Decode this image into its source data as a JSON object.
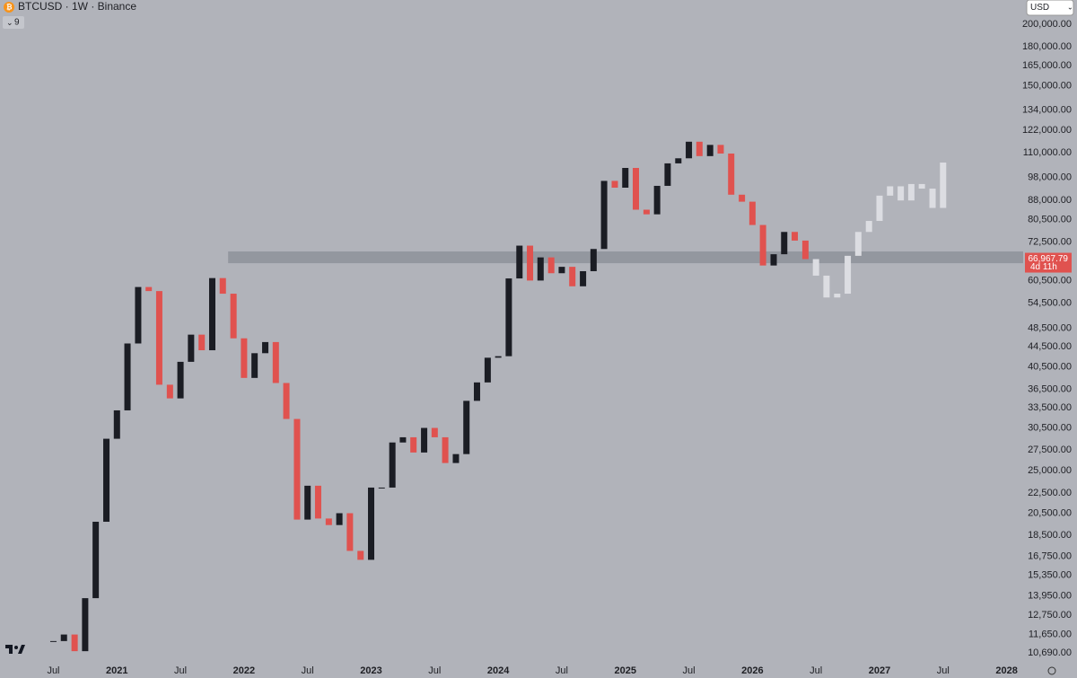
{
  "chart_data": {
    "type": "candlestick",
    "title": "BTCUSD · 1W · Binance",
    "indicator_count": "9",
    "currency": "USD",
    "log_scale": true,
    "xlim": [
      2020.08,
      2028.13
    ],
    "ylim": [
      10130,
      223900
    ],
    "xticks": [
      {
        "value": 2020.5,
        "label": "Jul"
      },
      2021,
      {
        "value": 2021.5,
        "label": "Jul"
      },
      2022,
      {
        "value": 2022.5,
        "label": "Jul"
      },
      2023,
      {
        "value": 2023.5,
        "label": "Jul"
      },
      2024,
      {
        "value": 2024.5,
        "label": "Jul"
      },
      2025,
      {
        "value": 2025.5,
        "label": "Jul"
      },
      2026,
      {
        "value": 2026.5,
        "label": "Jul"
      },
      2027,
      {
        "value": 2027.5,
        "label": "Jul"
      },
      2028
    ],
    "yticks": [
      {
        "value": 200000,
        "label": "200,000.00"
      },
      {
        "value": 180000,
        "label": "180,000.00"
      },
      {
        "value": 165000,
        "label": "165,000.00"
      },
      {
        "value": 150000,
        "label": "150,000.00"
      },
      {
        "value": 134000,
        "label": "134,000.00"
      },
      {
        "value": 122000,
        "label": "122,000.00"
      },
      {
        "value": 110000,
        "label": "110,000.00"
      },
      {
        "value": 98000,
        "label": "98,000.00"
      },
      {
        "value": 88000,
        "label": "88,000.00"
      },
      {
        "value": 80500,
        "label": "80,500.00"
      },
      {
        "value": 72500,
        "label": "72,500.00"
      },
      {
        "value": 60500,
        "label": "60,500.00"
      },
      {
        "value": 54500,
        "label": "54,500.00"
      },
      {
        "value": 48500,
        "label": "48,500.00"
      },
      {
        "value": 44500,
        "label": "44,500.00"
      },
      {
        "value": 40500,
        "label": "40,500.00"
      },
      {
        "value": 36500,
        "label": "36,500.00"
      },
      {
        "value": 33500,
        "label": "33,500.00"
      },
      {
        "value": 30500,
        "label": "30,500.00"
      },
      {
        "value": 27500,
        "label": "27,500.00"
      },
      {
        "value": 25000,
        "label": "25,000.00"
      },
      {
        "value": 22500,
        "label": "22,500.00"
      },
      {
        "value": 20500,
        "label": "20,500.00"
      },
      {
        "value": 18500,
        "label": "18,500.00"
      },
      {
        "value": 16750,
        "label": "16,750.00"
      },
      {
        "value": 15350,
        "label": "15,350.00"
      },
      {
        "value": 13950,
        "label": "13,950.00"
      },
      {
        "value": 12750,
        "label": "12,750.00"
      },
      {
        "value": 11650,
        "label": "11,650.00"
      },
      {
        "value": 10690,
        "label": "10,690.00"
      }
    ],
    "zone": {
      "start": 2021.875,
      "low": 65700,
      "high": 69400,
      "color": "#8a8d95"
    },
    "up_color": "#1b1d24",
    "down_color": "#e0524f",
    "series": [
      {
        "color": "#1b1d24",
        "x": [
          2020.5,
          2020.583,
          2020.667,
          2020.75,
          2020.833,
          2020.917,
          2021,
          2021.083,
          2021.167,
          2021.25,
          2021.333,
          2021.417,
          2021.5,
          2021.583,
          2021.667,
          2021.75,
          2021.833,
          2021.917,
          2022,
          2022.083,
          2022.167,
          2022.25,
          2022.333,
          2022.417,
          2022.5,
          2022.583,
          2022.667,
          2022.75,
          2022.833,
          2022.917,
          2023,
          2023.083,
          2023.167,
          2023.25,
          2023.333,
          2023.417,
          2023.5,
          2023.583,
          2023.667,
          2023.75,
          2023.833,
          2023.917,
          2024,
          2024.083,
          2024.167,
          2024.25,
          2024.333,
          2024.417,
          2024.5,
          2024.583,
          2024.667,
          2024.75,
          2024.833,
          2024.917,
          2025,
          2025.083,
          2025.167,
          2025.25,
          2025.333,
          2025.417,
          2025.5,
          2025.583,
          2025.667,
          2025.75,
          2025.833,
          2025.917,
          2026,
          2026.083,
          2026.167,
          2026.25,
          2026.333,
          2026.417
        ],
        "values": [
          11300,
          11650,
          10780,
          13800,
          19700,
          29000,
          33100,
          45200,
          58800,
          57700,
          37300,
          35000,
          41500,
          47100,
          43800,
          61300,
          57000,
          46300,
          38500,
          43200,
          45500,
          37600,
          31800,
          19900,
          23300,
          20000,
          19400,
          20500,
          17200,
          16500,
          23100,
          23100,
          28500,
          29200,
          27200,
          30500,
          29200,
          25900,
          27000,
          34600,
          37700,
          42300,
          42600,
          61200,
          71300,
          60600,
          67500,
          62700,
          64600,
          59000,
          63300,
          70200,
          96400,
          93400,
          102400,
          84300,
          82500,
          94200,
          104600,
          107100,
          115700,
          108200,
          114000,
          109500,
          90400,
          87500,
          78500,
          65000,
          68500,
          76000,
          73000,
          66967.79
        ]
      },
      {
        "color": "#dcdde2",
        "x": [
          2026.5,
          2026.583,
          2026.667,
          2026.75,
          2026.833,
          2026.917,
          2027,
          2027.083,
          2027.167,
          2027.25,
          2027.333,
          2027.417,
          2027.5
        ],
        "values": [
          62000,
          56000,
          57000,
          68000,
          76000,
          80000,
          90000,
          94000,
          88000,
          95000,
          93000,
          85000,
          105000
        ]
      }
    ],
    "last_price": {
      "value": 66967.79,
      "label": "66,967.79"
    },
    "countdown": "4d 11h"
  }
}
